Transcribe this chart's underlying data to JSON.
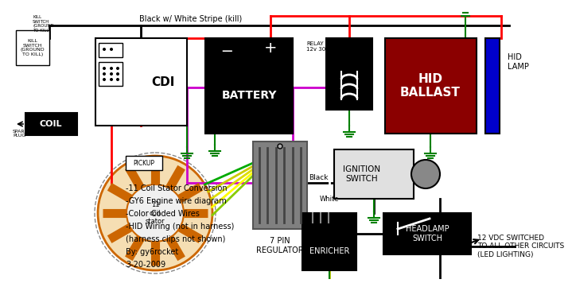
{
  "bg_color": "#ffffff",
  "kill_label": "Black w/ White Stripe (kill)",
  "kill_switch_text": "KILL\nSWITCH\n(GROUND\nTO KILL)",
  "stator_label": "11\ncoil\nstator",
  "pickup_label": "PICKUP",
  "black_label": "Black",
  "white_label": "White",
  "relay_label": "RELAY\n12v 30a",
  "vdc_label": "12 VDC SWITCHED\nTO ALL OTHER CIRCUITS\n(LED LIGHTING)",
  "text_notes": [
    "-11 Coil Stator Conversion",
    "-GY6 Engine wire diagram",
    "-Color Coded Wires",
    "-HID Wiring (not in harness)",
    "(harness clips not shown)",
    "By: gy6rocket",
    "3-20-2009"
  ]
}
